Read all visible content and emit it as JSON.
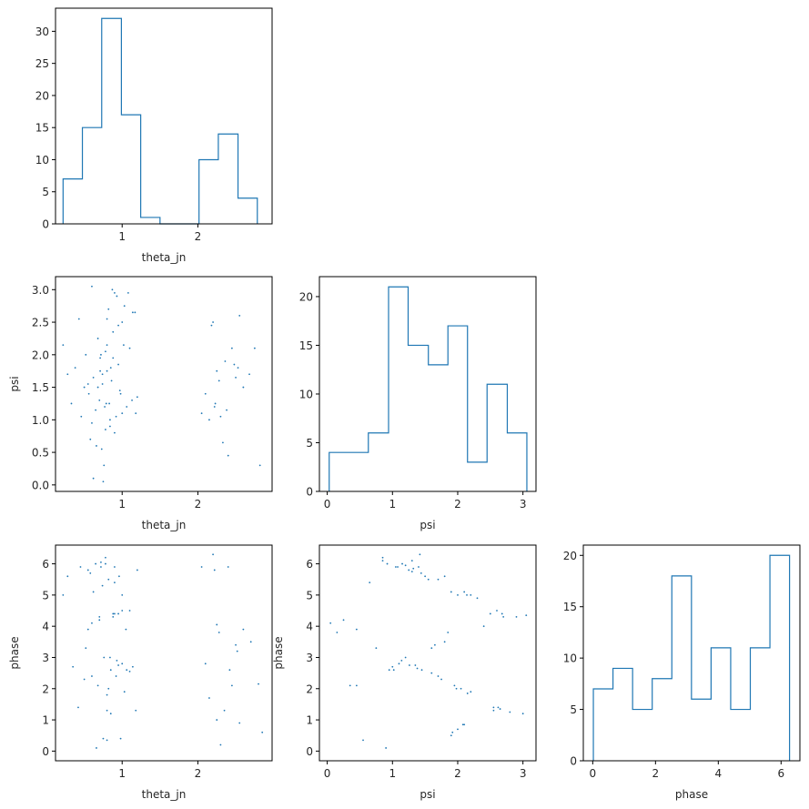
{
  "chart_data": [
    {
      "id": "hist-theta_jn",
      "type": "histogram",
      "xlabel": "theta_jn",
      "ylabel": "",
      "xlim": [
        0.12,
        2.98
      ],
      "ylim": [
        0,
        33.6
      ],
      "xticks": [
        1,
        2
      ],
      "yticks": [
        0,
        5,
        10,
        15,
        20,
        25,
        30
      ],
      "bin_edges": [
        0.22,
        0.475,
        0.73,
        0.99,
        1.245,
        1.5,
        1.76,
        2.015,
        2.27,
        2.53,
        2.785
      ],
      "counts": [
        7,
        15,
        32,
        17,
        1,
        0,
        0,
        10,
        14,
        4
      ]
    },
    {
      "id": "scatter-theta_jn-psi",
      "type": "scatter",
      "xlabel": "theta_jn",
      "ylabel": "psi",
      "xlim": [
        0.12,
        2.98
      ],
      "ylim": [
        -0.1,
        3.2
      ],
      "xticks": [
        1,
        2
      ],
      "yticks": [
        0.0,
        0.5,
        1.0,
        1.5,
        2.0,
        2.5,
        3.0
      ],
      "x": [
        0.22,
        0.28,
        0.33,
        0.38,
        0.43,
        0.46,
        0.5,
        0.52,
        0.56,
        0.58,
        0.6,
        0.62,
        0.65,
        0.68,
        0.7,
        0.72,
        0.74,
        0.75,
        0.77,
        0.78,
        0.8,
        0.82,
        0.84,
        0.86,
        0.88,
        0.9,
        0.92,
        0.95,
        0.97,
        1.0,
        1.03,
        1.06,
        1.1,
        1.13,
        1.17,
        1.2,
        0.62,
        0.66,
        0.71,
        0.76,
        0.8,
        0.85,
        0.9,
        0.95,
        1.0,
        0.68,
        0.73,
        0.78,
        0.83,
        0.88,
        0.93,
        0.98,
        1.02,
        0.74,
        0.79,
        0.84,
        1.08,
        1.14,
        1.18,
        0.55,
        0.6,
        0.71,
        0.8,
        0.87,
        2.05,
        2.1,
        2.15,
        2.18,
        2.2,
        2.22,
        2.25,
        2.28,
        2.3,
        2.33,
        2.36,
        2.4,
        2.45,
        2.5,
        2.53,
        2.55,
        2.6,
        2.68,
        2.75,
        2.82,
        2.23,
        2.38,
        2.48
      ],
      "y": [
        2.15,
        1.7,
        1.25,
        1.8,
        2.55,
        1.05,
        1.5,
        2.0,
        1.4,
        0.7,
        0.95,
        1.65,
        1.15,
        2.25,
        1.3,
        2.0,
        1.55,
        0.05,
        1.2,
        0.85,
        1.75,
        2.7,
        0.9,
        1.6,
        2.35,
        2.95,
        1.05,
        1.85,
        1.45,
        2.5,
        2.75,
        1.2,
        2.1,
        1.3,
        2.65,
        1.35,
        0.1,
        0.6,
        1.95,
        0.3,
        2.15,
        1.8,
        0.8,
        2.45,
        1.1,
        1.5,
        0.55,
        2.05,
        1.25,
        1.95,
        2.9,
        1.4,
        2.15,
        1.7,
        1.25,
        1.0,
        2.95,
        2.65,
        1.1,
        1.55,
        3.05,
        1.75,
        2.55,
        3.0,
        1.1,
        1.4,
        1.0,
        2.45,
        2.5,
        1.2,
        1.75,
        1.6,
        1.05,
        0.65,
        1.9,
        0.45,
        2.1,
        1.65,
        1.8,
        2.6,
        1.5,
        1.7,
        2.1,
        0.3,
        1.25,
        1.15,
        1.85
      ]
    },
    {
      "id": "hist-psi",
      "type": "histogram",
      "xlabel": "psi",
      "ylabel": "",
      "xlim": [
        -0.12,
        3.2
      ],
      "ylim": [
        0,
        22.05
      ],
      "xticks": [
        0,
        1,
        2,
        3
      ],
      "yticks": [
        0,
        5,
        10,
        15,
        20
      ],
      "bin_edges": [
        0.03,
        0.33,
        0.63,
        0.94,
        1.24,
        1.55,
        1.85,
        2.15,
        2.45,
        2.76,
        3.06
      ],
      "counts": [
        4,
        4,
        6,
        21,
        15,
        13,
        17,
        3,
        11,
        6
      ]
    },
    {
      "id": "scatter-theta_jn-phase",
      "type": "scatter",
      "xlabel": "theta_jn",
      "ylabel": "phase",
      "xlim": [
        0.12,
        2.98
      ],
      "ylim": [
        -0.31,
        6.6
      ],
      "xticks": [
        1,
        2
      ],
      "yticks": [
        0,
        1,
        2,
        3,
        4,
        5,
        6
      ],
      "x": [
        0.22,
        0.28,
        0.35,
        0.42,
        0.45,
        0.5,
        0.52,
        0.55,
        0.58,
        0.6,
        0.62,
        0.65,
        0.68,
        0.7,
        0.72,
        0.75,
        0.78,
        0.8,
        0.82,
        0.85,
        0.88,
        0.9,
        0.93,
        0.95,
        0.98,
        1.0,
        1.03,
        1.06,
        1.1,
        1.14,
        1.18,
        1.2,
        0.66,
        0.7,
        0.74,
        0.78,
        0.8,
        0.84,
        0.88,
        0.92,
        0.96,
        1.0,
        0.76,
        0.8,
        0.85,
        0.9,
        0.95,
        1.0,
        1.05,
        1.1,
        0.55,
        0.6,
        0.72,
        0.82,
        0.9,
        2.05,
        2.1,
        2.15,
        2.2,
        2.22,
        2.25,
        2.28,
        2.3,
        2.35,
        2.4,
        2.45,
        2.5,
        2.55,
        2.6,
        2.7,
        2.8,
        2.85,
        2.25,
        2.42,
        2.52
      ],
      "y": [
        5.0,
        5.6,
        2.7,
        1.4,
        5.9,
        2.3,
        3.3,
        3.9,
        5.7,
        2.4,
        5.1,
        6.0,
        2.1,
        4.3,
        5.9,
        0.4,
        6.2,
        1.3,
        5.5,
        2.6,
        4.4,
        5.9,
        2.9,
        4.4,
        0.4,
        2.8,
        1.9,
        2.6,
        4.5,
        2.7,
        1.3,
        5.8,
        0.1,
        4.2,
        5.3,
        6.0,
        1.8,
        3.0,
        4.3,
        2.4,
        5.6,
        4.5,
        3.0,
        0.35,
        1.2,
        4.4,
        2.75,
        5.0,
        3.9,
        2.55,
        5.8,
        4.1,
        6.05,
        2.0,
        5.4,
        5.9,
        2.8,
        1.7,
        6.3,
        5.8,
        1.0,
        3.8,
        0.2,
        1.3,
        5.9,
        2.1,
        3.4,
        0.9,
        3.9,
        3.5,
        2.15,
        0.6,
        4.05,
        2.6,
        3.2
      ]
    },
    {
      "id": "scatter-psi-phase",
      "type": "scatter",
      "xlabel": "psi",
      "ylabel": "phase",
      "xlim": [
        -0.12,
        3.2
      ],
      "ylim": [
        -0.31,
        6.6
      ],
      "xticks": [
        0,
        1,
        2,
        3
      ],
      "yticks": [
        0,
        1,
        2,
        3,
        4,
        5,
        6
      ],
      "x": [
        0.05,
        0.15,
        0.25,
        0.35,
        0.45,
        0.55,
        0.65,
        0.75,
        0.85,
        0.9,
        0.95,
        1.0,
        1.05,
        1.1,
        1.15,
        1.2,
        1.25,
        1.3,
        1.35,
        1.4,
        1.45,
        1.5,
        1.55,
        1.6,
        1.65,
        1.7,
        1.75,
        1.8,
        1.85,
        1.9,
        1.95,
        2.0,
        2.05,
        2.1,
        2.15,
        2.2,
        2.3,
        2.4,
        2.5,
        2.55,
        2.6,
        2.65,
        2.7,
        2.8,
        2.9,
        3.0,
        3.05,
        1.02,
        1.08,
        1.14,
        1.2,
        1.26,
        1.32,
        1.38,
        1.44,
        1.6,
        1.7,
        1.8,
        1.9,
        2.0,
        2.1,
        2.2,
        1.92,
        1.98,
        2.08,
        2.14,
        2.55,
        2.62,
        2.68,
        0.45,
        0.85,
        0.92,
        1.3,
        1.42
      ],
      "y": [
        4.1,
        3.8,
        4.2,
        2.1,
        3.9,
        0.35,
        5.4,
        3.3,
        6.1,
        0.1,
        2.6,
        2.7,
        5.9,
        2.8,
        6.0,
        3.0,
        5.8,
        6.1,
        2.75,
        5.9,
        2.6,
        5.6,
        5.5,
        2.5,
        3.4,
        5.5,
        2.3,
        5.6,
        3.8,
        5.1,
        2.1,
        5.0,
        2.0,
        5.1,
        1.85,
        5.0,
        4.9,
        4.0,
        4.4,
        1.4,
        4.5,
        1.35,
        4.3,
        1.25,
        4.3,
        1.2,
        4.35,
        2.6,
        5.9,
        2.9,
        5.95,
        2.75,
        5.85,
        2.65,
        5.7,
        3.3,
        2.4,
        3.5,
        0.5,
        0.7,
        0.85,
        1.9,
        0.6,
        2.0,
        0.85,
        5.0,
        1.3,
        1.4,
        4.4,
        2.1,
        6.2,
        6.0,
        5.75,
        6.3
      ]
    },
    {
      "id": "hist-phase",
      "type": "histogram",
      "xlabel": "phase",
      "ylabel": "",
      "xlim": [
        -0.3,
        6.6
      ],
      "ylim": [
        0,
        21.0
      ],
      "xticks": [
        0,
        2,
        4,
        6
      ],
      "yticks": [
        0,
        5,
        10,
        15,
        20
      ],
      "bin_edges": [
        0.02,
        0.645,
        1.27,
        1.895,
        2.52,
        3.145,
        3.77,
        4.395,
        5.02,
        5.645,
        6.27
      ],
      "counts": [
        7,
        9,
        5,
        8,
        18,
        6,
        11,
        5,
        11,
        20
      ]
    }
  ]
}
